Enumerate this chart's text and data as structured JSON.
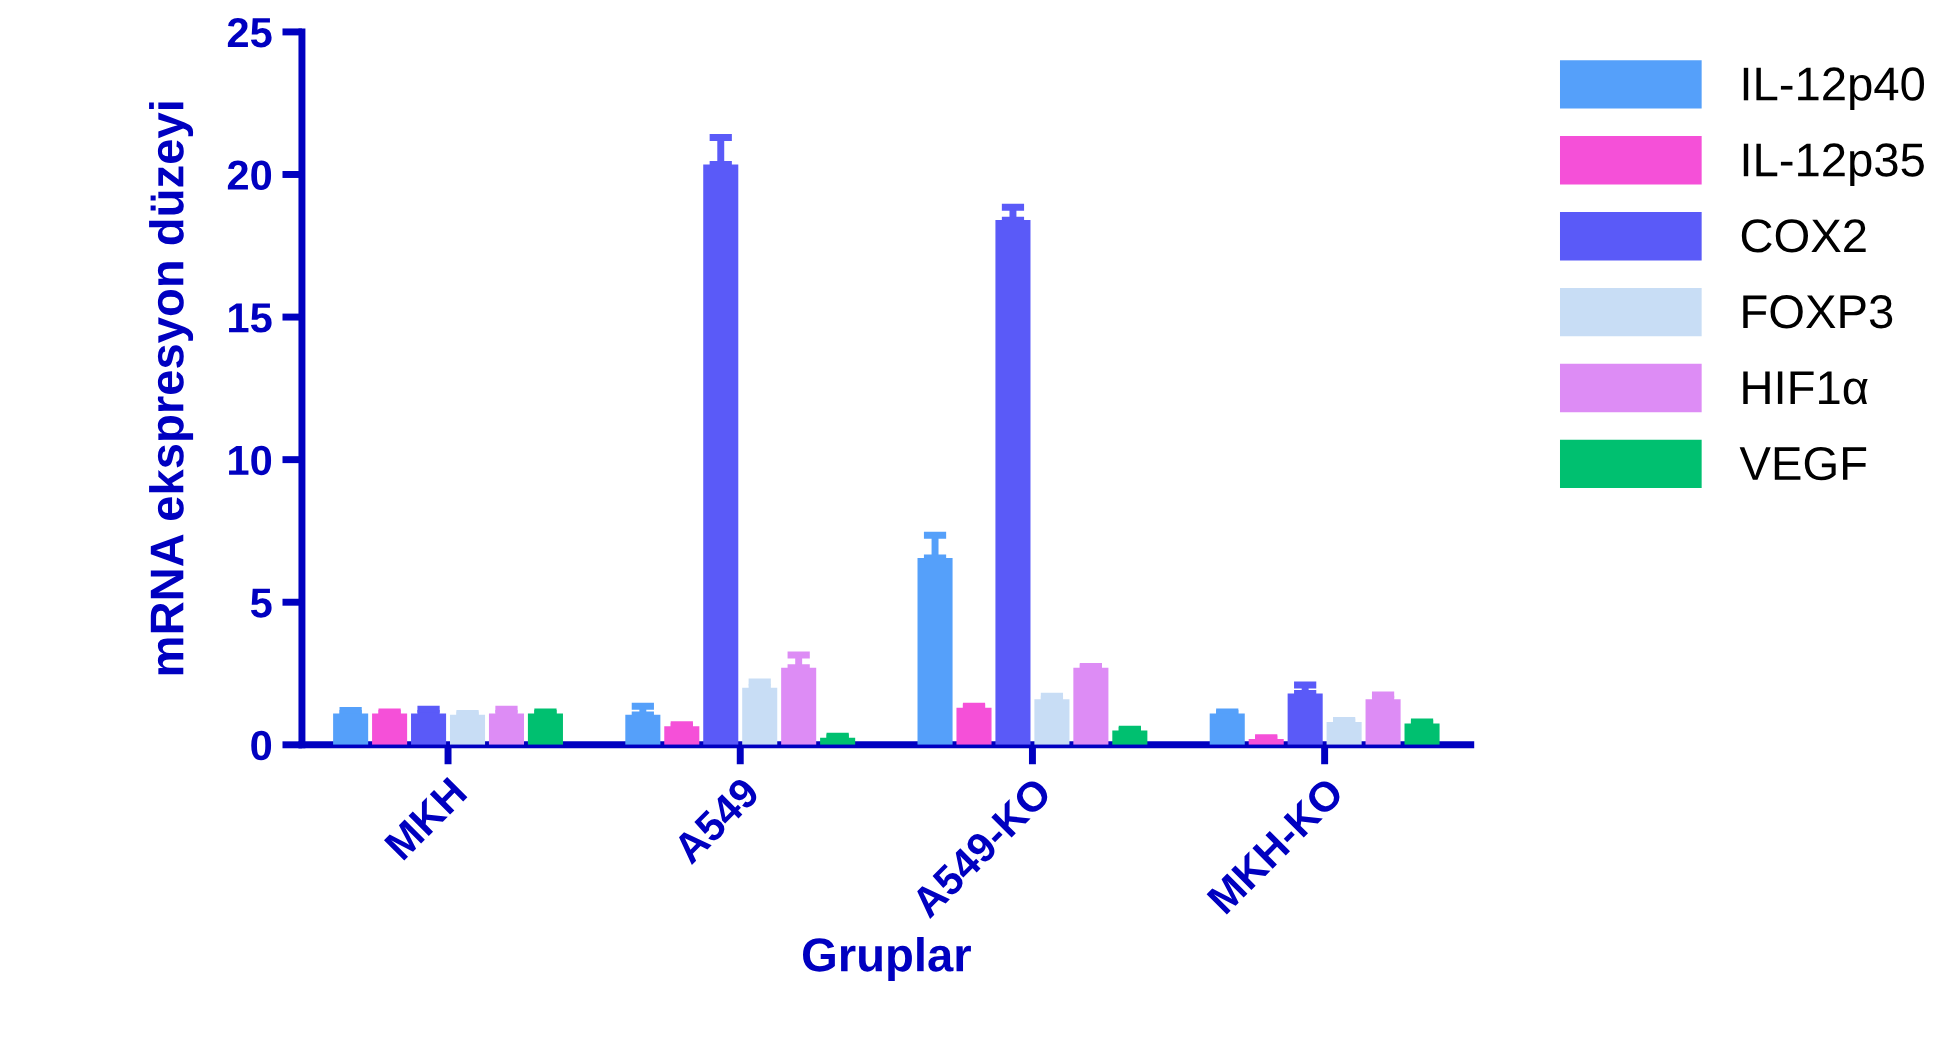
{
  "chart_data": {
    "type": "bar",
    "xlabel": "Gruplar",
    "ylabel": "mRNA ekspresyon düzeyi",
    "categories": [
      "MKH",
      "A549",
      "A549-KO",
      "MKH-KO"
    ],
    "series": [
      {
        "name": "IL-12p40",
        "color": "#55a0fa",
        "values": [
          1.1,
          1.05,
          6.55,
          1.1
        ],
        "errors": [
          0.1,
          0.3,
          0.8,
          0.05
        ]
      },
      {
        "name": "IL-12p35",
        "color": "#f550d8",
        "values": [
          1.1,
          0.65,
          1.3,
          0.2
        ],
        "errors": [
          0.05,
          0.05,
          0.05,
          0.05
        ]
      },
      {
        "name": "COX2",
        "color": "#5a5af8",
        "values": [
          1.1,
          20.35,
          18.4,
          1.8
        ],
        "errors": [
          0.15,
          0.95,
          0.45,
          0.3
        ]
      },
      {
        "name": "FOXP3",
        "color": "#c8ddf5",
        "values": [
          1.05,
          2.0,
          1.6,
          0.8
        ],
        "errors": [
          0.05,
          0.2,
          0.1,
          0.05
        ]
      },
      {
        "name": "HIF1α",
        "color": "#dd8cf5",
        "values": [
          1.1,
          2.7,
          2.7,
          1.6
        ],
        "errors": [
          0.15,
          0.45,
          0.05,
          0.15
        ]
      },
      {
        "name": "VEGF",
        "color": "#00c070",
        "values": [
          1.1,
          0.25,
          0.5,
          0.75
        ],
        "errors": [
          0.05,
          0.05,
          0.05,
          0.05
        ]
      }
    ],
    "ylim": [
      0,
      25
    ],
    "yticks": [
      0,
      5,
      10,
      15,
      20,
      25
    ],
    "grid": false,
    "legend": "right"
  }
}
